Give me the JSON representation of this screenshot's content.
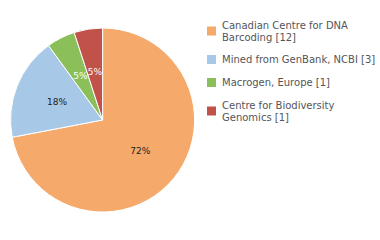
{
  "chart_data": {
    "type": "pie",
    "categories": [
      "Canadian Centre for DNA\nBarcoding [12]",
      "Mined from GenBank, NCBI [3]",
      "Macrogen, Europe [1]",
      "Centre for Biodiversity\nGenomics [1]"
    ],
    "values": [
      72,
      18,
      5,
      5
    ],
    "value_labels": [
      "72%",
      "18%",
      "5%",
      "5%"
    ],
    "colors": [
      "#F5A96B",
      "#A8C8E8",
      "#8BBF5A",
      "#C0524A"
    ],
    "data_labels": true,
    "legend": "right"
  }
}
